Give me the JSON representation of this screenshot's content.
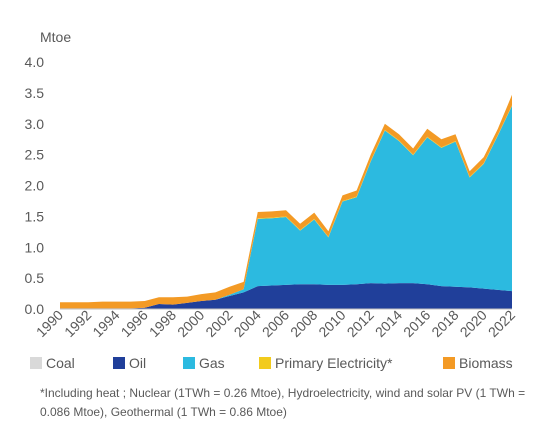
{
  "chart_data": {
    "type": "area",
    "stacked": true,
    "ylabel": "Mtoe",
    "xlabel": "",
    "ylim": [
      0,
      4.0
    ],
    "y_ticks": [
      0.0,
      0.5,
      1.0,
      1.5,
      2.0,
      2.5,
      3.0,
      3.5,
      4.0
    ],
    "y_tick_labels": [
      "0.0",
      "0.5",
      "1.0",
      "1.5",
      "2.0",
      "2.5",
      "3.0",
      "3.5",
      "4.0"
    ],
    "x": [
      1990,
      1991,
      1992,
      1993,
      1994,
      1995,
      1996,
      1997,
      1998,
      1999,
      2000,
      2001,
      2002,
      2003,
      2004,
      2005,
      2006,
      2007,
      2008,
      2009,
      2010,
      2011,
      2012,
      2013,
      2014,
      2015,
      2016,
      2017,
      2018,
      2019,
      2020,
      2021,
      2022
    ],
    "x_tick_labels": [
      "1990",
      "1992",
      "1994",
      "1996",
      "1998",
      "2000",
      "2002",
      "2004",
      "2006",
      "2008",
      "2010",
      "2012",
      "2014",
      "2016",
      "2018",
      "2020",
      "2022"
    ],
    "grid": false,
    "legend_position": "bottom",
    "series": [
      {
        "name": "Coal",
        "color": "#d9d9d9",
        "values": [
          0,
          0,
          0,
          0,
          0,
          0,
          0,
          0,
          0,
          0,
          0,
          0,
          0,
          0,
          0,
          0,
          0,
          0,
          0,
          0,
          0,
          0,
          0,
          0,
          0,
          0,
          0,
          0,
          0,
          0,
          0,
          0,
          0
        ]
      },
      {
        "name": "Oil",
        "color": "#203f9a",
        "values": [
          0.01,
          0.01,
          0.01,
          0.01,
          0.01,
          0.01,
          0.02,
          0.08,
          0.07,
          0.1,
          0.13,
          0.15,
          0.21,
          0.27,
          0.37,
          0.38,
          0.39,
          0.4,
          0.4,
          0.39,
          0.39,
          0.4,
          0.42,
          0.41,
          0.42,
          0.42,
          0.4,
          0.37,
          0.36,
          0.35,
          0.33,
          0.31,
          0.29
        ]
      },
      {
        "name": "Gas",
        "color": "#2cbae0",
        "values": [
          0,
          0,
          0,
          0,
          0,
          0,
          0,
          0,
          0,
          0,
          0,
          0,
          0.02,
          0.05,
          1.09,
          1.09,
          1.1,
          0.87,
          1.05,
          0.77,
          1.35,
          1.41,
          1.97,
          2.48,
          2.3,
          2.07,
          2.38,
          2.24,
          2.35,
          1.78,
          2.02,
          2.5,
          3.0
        ]
      },
      {
        "name": "Primary Electricity*",
        "color": "#f2cb1d",
        "values": [
          0,
          0,
          0,
          0,
          0,
          0,
          0,
          0,
          0,
          0,
          0,
          0,
          0,
          0,
          0.01,
          0.01,
          0.01,
          0.01,
          0.01,
          0.01,
          0.01,
          0.01,
          0.01,
          0.01,
          0.01,
          0.01,
          0.01,
          0.01,
          0.01,
          0.01,
          0.01,
          0.01,
          0.01
        ]
      },
      {
        "name": "Biomass",
        "color": "#f39a25",
        "values": [
          0.1,
          0.1,
          0.1,
          0.11,
          0.11,
          0.11,
          0.11,
          0.11,
          0.12,
          0.1,
          0.11,
          0.12,
          0.13,
          0.12,
          0.1,
          0.1,
          0.1,
          0.1,
          0.1,
          0.09,
          0.09,
          0.1,
          0.1,
          0.1,
          0.1,
          0.1,
          0.13,
          0.13,
          0.11,
          0.09,
          0.1,
          0.1,
          0.17
        ]
      }
    ],
    "footnote": "*Including heat ; Nuclear (1TWh = 0.26 Mtoe), Hydroelectricity, wind and solar PV (1 TWh = 0.086  Mtoe), Geothermal (1 TWh = 0.86 Mtoe)"
  }
}
